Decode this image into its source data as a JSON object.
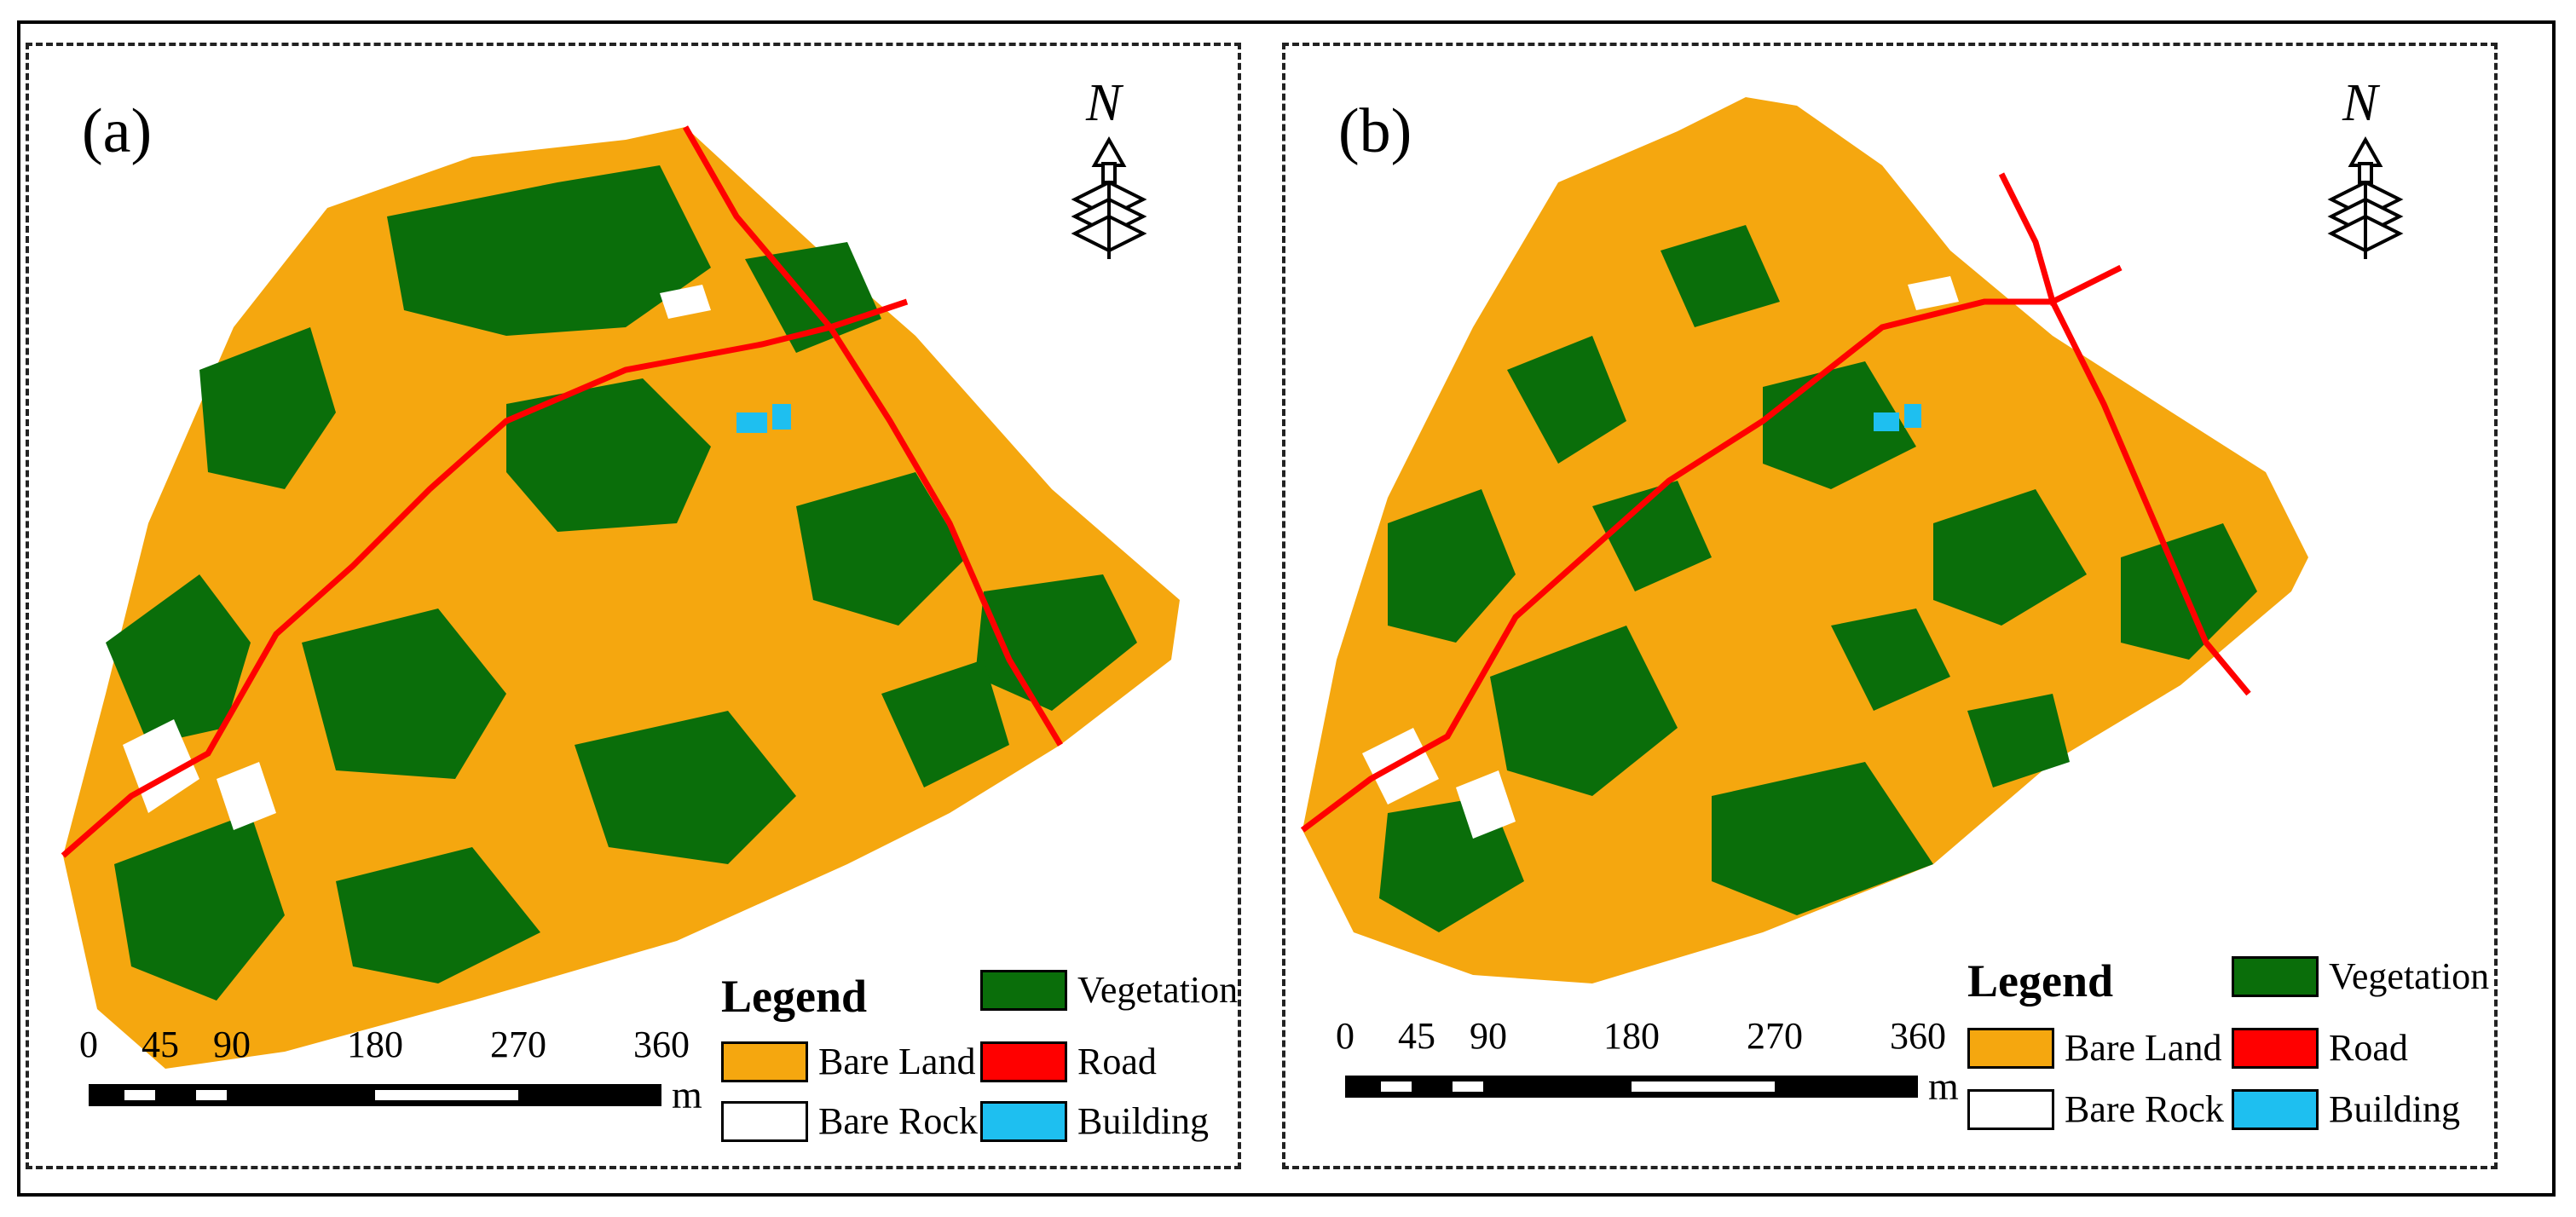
{
  "panels": [
    {
      "id": "a",
      "label": "(a)"
    },
    {
      "id": "b",
      "label": "(b)"
    }
  ],
  "north_arrow": {
    "letter": "N",
    "icon": "north-arrow-icon"
  },
  "legend": {
    "title": "Legend",
    "items": [
      {
        "label": "Vegetation",
        "color": "#0a6e0a"
      },
      {
        "label": "Bare Land",
        "color": "#f5a70f"
      },
      {
        "label": "Road",
        "color": "#ff0000"
      },
      {
        "label": "Bare Rock",
        "color": "#ffffff"
      },
      {
        "label": "Building",
        "color": "#1ebff0"
      }
    ]
  },
  "scale": {
    "ticks": [
      "0",
      "45",
      "90",
      "180",
      "270",
      "360"
    ],
    "unit": "m"
  }
}
